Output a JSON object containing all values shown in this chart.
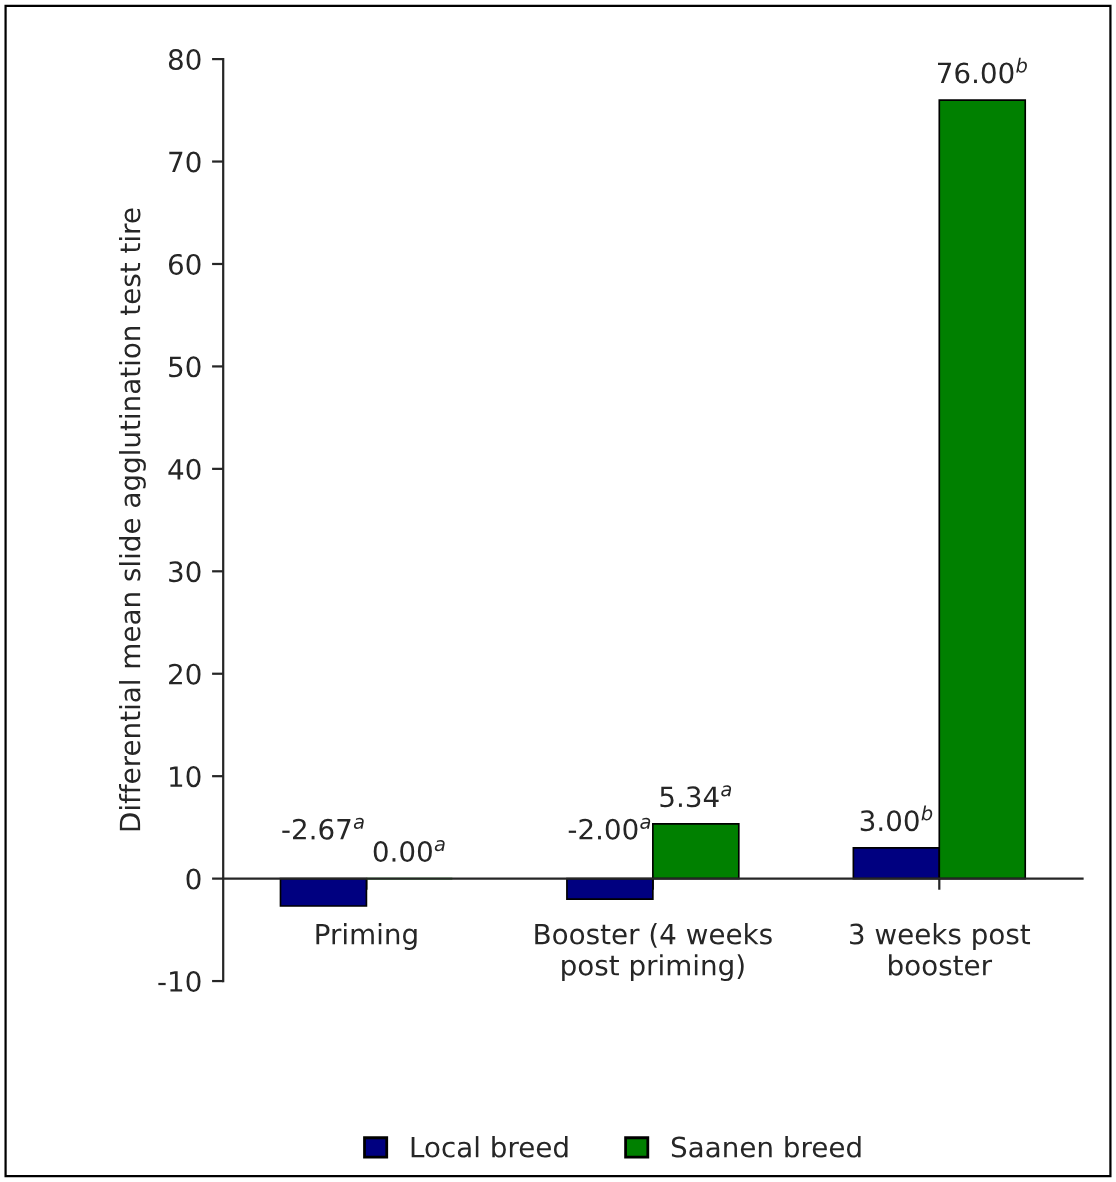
{
  "chart_data": {
    "type": "bar",
    "ylabel": "Differential mean slide agglutination test tire",
    "categories": [
      "Priming",
      "Booster (4 weeks\npost priming)",
      "3 weeks post\nbooster"
    ],
    "series": [
      {
        "name": "Local breed",
        "color": "#000080",
        "values": [
          -2.67,
          -2.0,
          3.0
        ],
        "value_labels": [
          "-2.67$^{a}$",
          "-2.00$^{a}$",
          "3.00$^{b}$"
        ]
      },
      {
        "name": "Saanen breed",
        "color": "#008000",
        "values": [
          0.0,
          5.34,
          76.0
        ],
        "value_labels": [
          "0.00$^{a}$",
          "5.34$^{a}$",
          "76.00$^{b}$"
        ]
      }
    ],
    "ylim": [
      -10,
      80
    ],
    "yticks": [
      -10,
      0,
      10,
      20,
      30,
      40,
      50,
      60,
      70,
      80
    ],
    "legend": "bottom",
    "grid": false
  }
}
